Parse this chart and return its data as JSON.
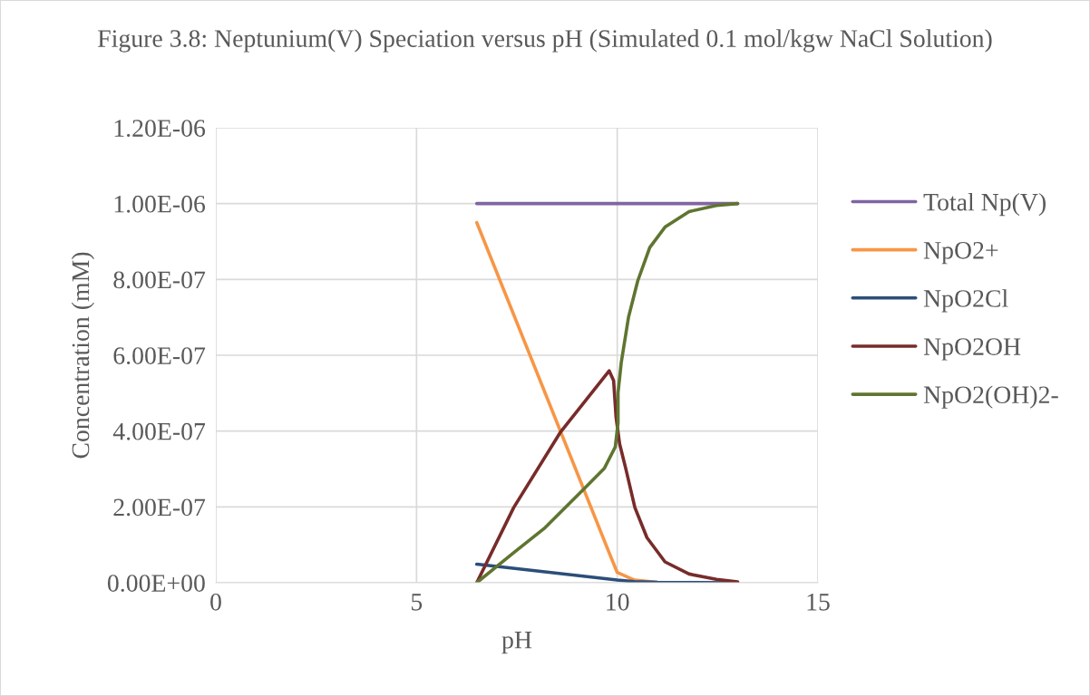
{
  "chart_data": {
    "type": "line",
    "title": "Figure 3.8: Neptunium(V) Speciation versus pH (Simulated 0.1 mol/kgw NaCl Solution)",
    "xlabel": "pH",
    "ylabel": "Concentration (mM)",
    "xlim": [
      0,
      15
    ],
    "xticks": [
      0,
      5,
      10,
      15
    ],
    "ylim": [
      0,
      1.2e-06
    ],
    "yticks": [
      {
        "value": 0,
        "label": "0.00E+00"
      },
      {
        "value": 2e-07,
        "label": "2.00E-07"
      },
      {
        "value": 4e-07,
        "label": "4.00E-07"
      },
      {
        "value": 6e-07,
        "label": "6.00E-07"
      },
      {
        "value": 8e-07,
        "label": "8.00E-07"
      },
      {
        "value": 1e-06,
        "label": "1.00E-06"
      },
      {
        "value": 1.2e-06,
        "label": "1.20E-06"
      }
    ],
    "grid": true,
    "legend": "right",
    "marker": "none",
    "line_style": "solid",
    "series": [
      {
        "name": "Total Np(V)",
        "color": "#8064a2",
        "x": [
          6.5,
          13
        ],
        "values": [
          1e-06,
          1e-06
        ]
      },
      {
        "name": "NpO2+",
        "color": "#f79646",
        "x": [
          6.5,
          9.83,
          10.0,
          10.43,
          11.0,
          13.0
        ],
        "values": [
          9.5e-07,
          7.1e-08,
          2.7e-08,
          7e-09,
          1e-09,
          0
        ]
      },
      {
        "name": "NpO2Cl",
        "color": "#2b4e7a",
        "x": [
          6.5,
          10.0,
          10.43,
          11.0,
          13.0
        ],
        "values": [
          4.9e-08,
          7e-09,
          3e-09,
          1e-09,
          0
        ]
      },
      {
        "name": "NpO2OH",
        "color": "#772c2a",
        "x": [
          6.5,
          7.42,
          8.59,
          9.8,
          9.91,
          9.97,
          10.06,
          10.21,
          10.44,
          10.74,
          11.19,
          11.79,
          12.47,
          13.0
        ],
        "values": [
          0,
          1.98e-07,
          3.98e-07,
          5.59e-07,
          5.33e-07,
          4.37e-07,
          3.66e-07,
          3.02e-07,
          1.98e-07,
          1.19e-07,
          5.5e-08,
          2.3e-08,
          9e-09,
          2e-09
        ]
      },
      {
        "name": "NpO2(OH)2-",
        "color": "#5f7530",
        "x": [
          6.5,
          7.42,
          8.18,
          9.16,
          9.68,
          9.95,
          10.02,
          10.02,
          10.1,
          10.28,
          10.51,
          10.81,
          11.19,
          11.79,
          12.47,
          13.0
        ],
        "values": [
          0,
          7.9e-08,
          1.43e-07,
          2.46e-07,
          3.02e-07,
          3.58e-07,
          4.21e-07,
          5.01e-07,
          5.81e-07,
          7e-07,
          7.96e-07,
          8.84e-07,
          9.38e-07,
          9.79e-07,
          9.95e-07,
          1e-06
        ]
      }
    ]
  }
}
